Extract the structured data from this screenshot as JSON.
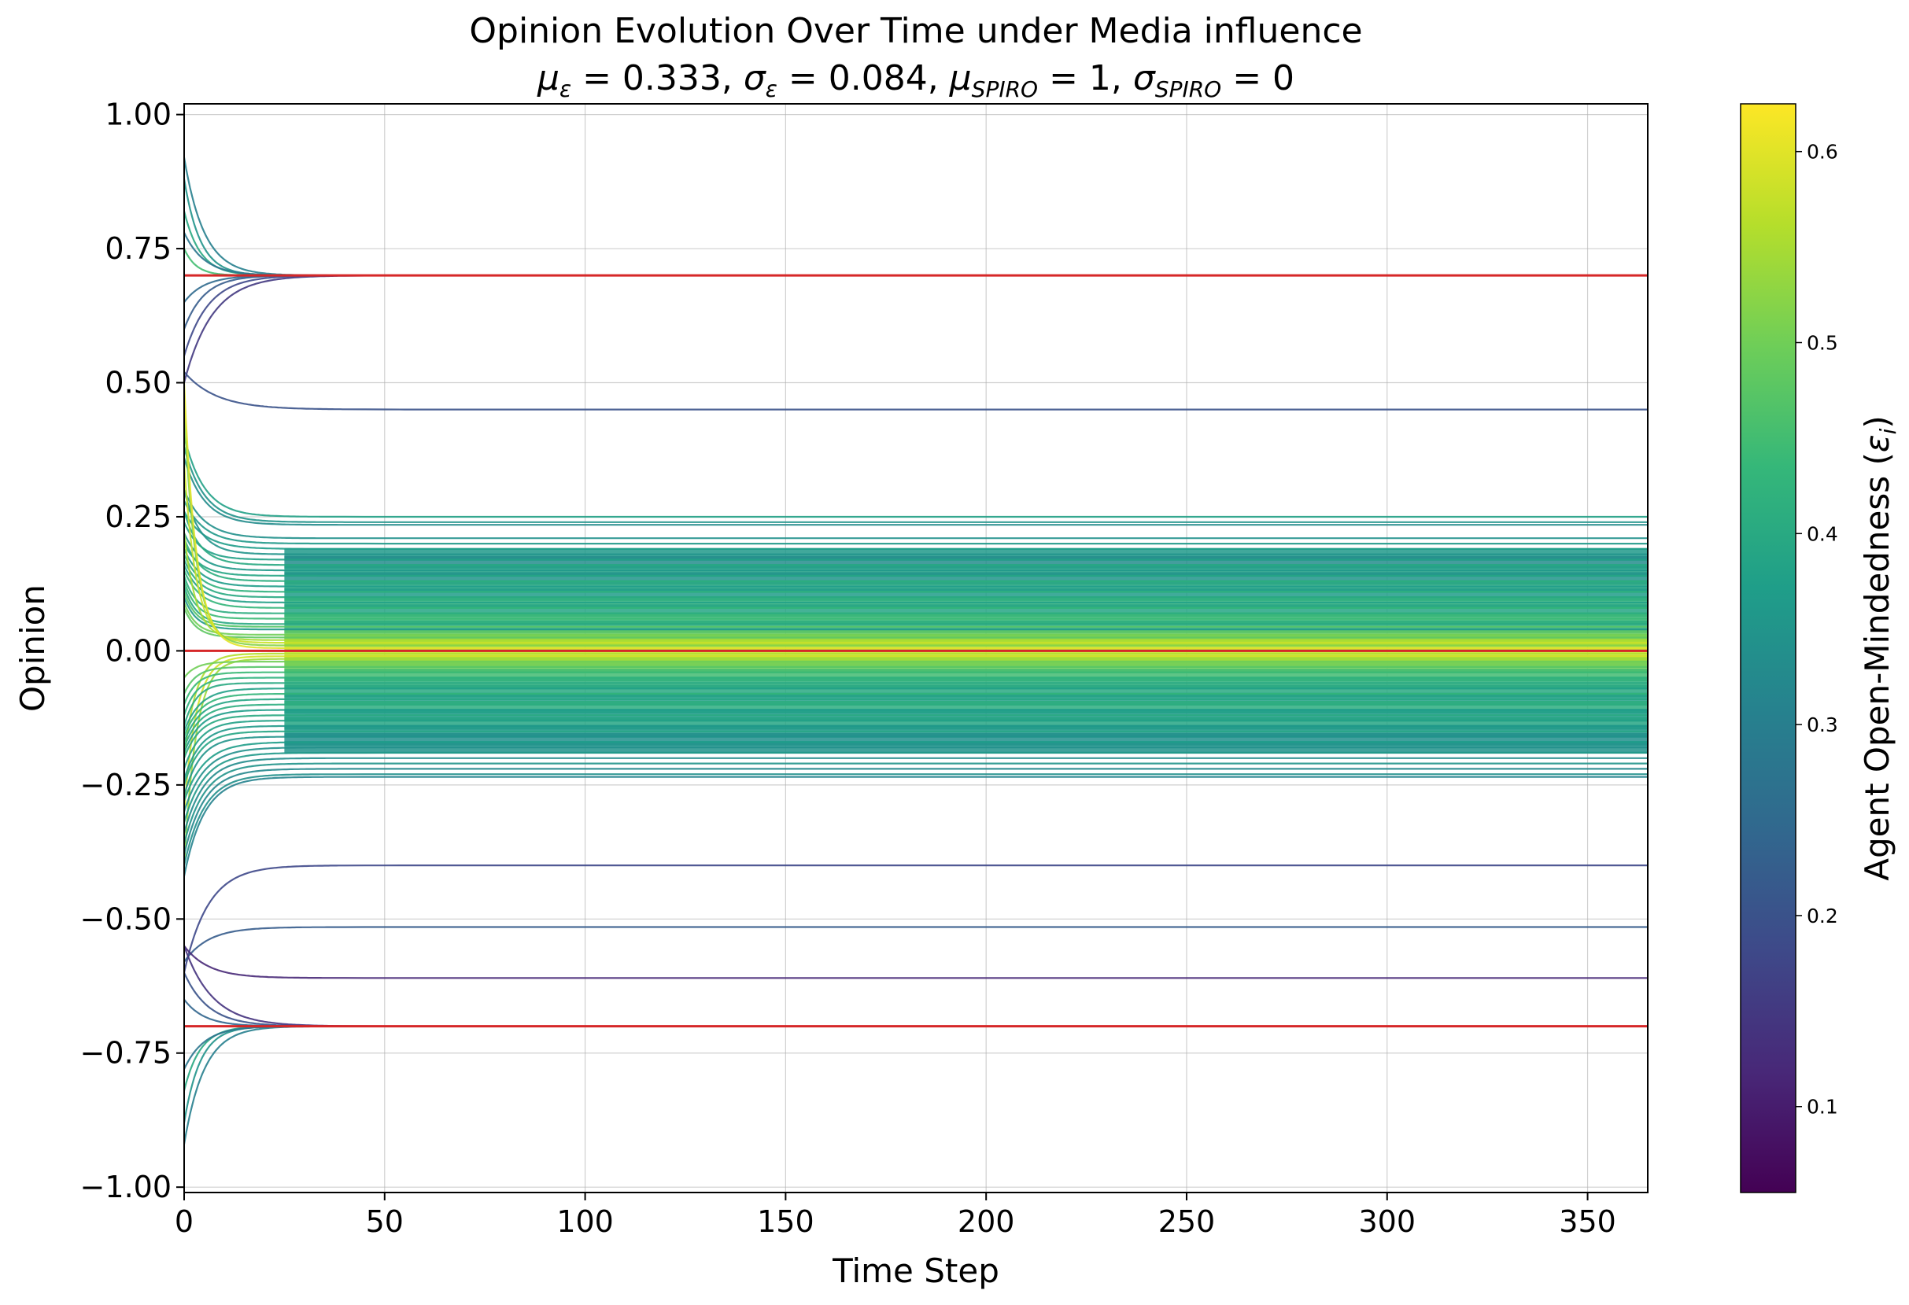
{
  "chart_data": {
    "type": "line",
    "title": "Opinion Evolution Over Time under Media influence",
    "subtitle": {
      "mu_eps_sym": "μ",
      "mu_eps_sub": "ε",
      "mu_eps_val": " = 0.333, ",
      "sigma_eps_sym": "σ",
      "sigma_eps_sub": "ε",
      "sigma_eps_val": " = 0.084, ",
      "mu_spiro_sym": "μ",
      "mu_spiro_sub": "SPIRO",
      "mu_spiro_val": " = 1, ",
      "sigma_spiro_sym": "σ",
      "sigma_spiro_sub": "SPIRO",
      "sigma_spiro_val": " = 0"
    },
    "xlabel": "Time Step",
    "ylabel": "Opinion",
    "xlim": [
      0,
      365
    ],
    "ylim": [
      -1.01,
      1.02
    ],
    "grid": true,
    "x_ticks": [
      0,
      50,
      100,
      150,
      200,
      250,
      300,
      350
    ],
    "x_tick_labels": [
      "0",
      "50",
      "100",
      "150",
      "200",
      "250",
      "300",
      "350"
    ],
    "y_ticks": [
      1.0,
      0.75,
      0.5,
      0.25,
      0.0,
      -0.25,
      -0.5,
      -0.75,
      -1.0
    ],
    "y_tick_labels": [
      "1.00",
      "0.75",
      "0.50",
      "0.25",
      "0.00",
      "−0.25",
      "−0.50",
      "−0.75",
      "−1.00"
    ],
    "media_levels": [
      0.7,
      0.0,
      -0.7
    ],
    "media_color": "#d62728",
    "colorbar": {
      "label_text": "Agent Open-Mindedness (",
      "label_sym": "ε",
      "label_sub": "i",
      "label_close": ")",
      "colormap": "viridis",
      "vmin": 0.055,
      "vmax": 0.625,
      "ticks": [
        0.1,
        0.2,
        0.3,
        0.4,
        0.5,
        0.6
      ],
      "tick_labels": [
        "0.1",
        "0.2",
        "0.3",
        "0.4",
        "0.5",
        "0.6"
      ],
      "stops": [
        "#440154",
        "#482878",
        "#3e4989",
        "#31688e",
        "#26828e",
        "#1f9e89",
        "#35b779",
        "#6ece58",
        "#b5de2b",
        "#fde725"
      ]
    },
    "series": [
      {
        "start": 0.92,
        "final": 0.7,
        "eps": 0.3,
        "tau": 5
      },
      {
        "start": 0.88,
        "final": 0.7,
        "eps": 0.35,
        "tau": 4
      },
      {
        "start": 0.82,
        "final": 0.7,
        "eps": 0.4,
        "tau": 4
      },
      {
        "start": 0.78,
        "final": 0.7,
        "eps": 0.28,
        "tau": 5
      },
      {
        "start": 0.75,
        "final": 0.7,
        "eps": 0.45,
        "tau": 3
      },
      {
        "start": 0.55,
        "final": 0.7,
        "eps": 0.18,
        "tau": 6
      },
      {
        "start": 0.6,
        "final": 0.7,
        "eps": 0.22,
        "tau": 5
      },
      {
        "start": 0.5,
        "final": 0.7,
        "eps": 0.15,
        "tau": 7
      },
      {
        "start": 0.65,
        "final": 0.7,
        "eps": 0.25,
        "tau": 5
      },
      {
        "start": 0.52,
        "final": 0.45,
        "eps": 0.2,
        "tau": 8
      },
      {
        "start": 0.4,
        "final": 0.25,
        "eps": 0.38,
        "tau": 5
      },
      {
        "start": 0.38,
        "final": 0.24,
        "eps": 0.35,
        "tau": 5
      },
      {
        "start": 0.36,
        "final": 0.235,
        "eps": 0.33,
        "tau": 5
      },
      {
        "start": 0.3,
        "final": 0.21,
        "eps": 0.34,
        "tau": 5
      },
      {
        "start": 0.28,
        "final": 0.2,
        "eps": 0.36,
        "tau": 5
      },
      {
        "start": 0.26,
        "final": 0.19,
        "eps": 0.37,
        "tau": 5
      },
      {
        "start": 0.3,
        "final": 0.18,
        "eps": 0.35,
        "tau": 4
      },
      {
        "start": 0.24,
        "final": 0.17,
        "eps": 0.38,
        "tau": 4
      },
      {
        "start": 0.26,
        "final": 0.16,
        "eps": 0.4,
        "tau": 4
      },
      {
        "start": 0.22,
        "final": 0.15,
        "eps": 0.36,
        "tau": 4
      },
      {
        "start": 0.2,
        "final": 0.14,
        "eps": 0.39,
        "tau": 4
      },
      {
        "start": 0.21,
        "final": 0.13,
        "eps": 0.41,
        "tau": 4
      },
      {
        "start": 0.19,
        "final": 0.12,
        "eps": 0.37,
        "tau": 4
      },
      {
        "start": 0.18,
        "final": 0.11,
        "eps": 0.42,
        "tau": 4
      },
      {
        "start": 0.17,
        "final": 0.1,
        "eps": 0.4,
        "tau": 4
      },
      {
        "start": 0.16,
        "final": 0.09,
        "eps": 0.38,
        "tau": 4
      },
      {
        "start": 0.15,
        "final": 0.08,
        "eps": 0.43,
        "tau": 4
      },
      {
        "start": 0.14,
        "final": 0.07,
        "eps": 0.41,
        "tau": 3
      },
      {
        "start": 0.13,
        "final": 0.06,
        "eps": 0.44,
        "tau": 3
      },
      {
        "start": 0.12,
        "final": 0.05,
        "eps": 0.4,
        "tau": 3
      },
      {
        "start": 0.11,
        "final": 0.045,
        "eps": 0.47,
        "tau": 3
      },
      {
        "start": 0.1,
        "final": 0.04,
        "eps": 0.36,
        "tau": 3
      },
      {
        "start": 0.09,
        "final": 0.03,
        "eps": 0.5,
        "tau": 3
      },
      {
        "start": 0.08,
        "final": 0.025,
        "eps": 0.48,
        "tau": 3
      },
      {
        "start": 0.22,
        "final": 0.02,
        "eps": 0.55,
        "tau": 3
      },
      {
        "start": 0.35,
        "final": 0.015,
        "eps": 0.58,
        "tau": 3
      },
      {
        "start": 0.45,
        "final": 0.01,
        "eps": 0.52,
        "tau": 3
      },
      {
        "start": 0.5,
        "final": 0.005,
        "eps": 0.6,
        "tau": 3
      },
      {
        "start": -0.2,
        "final": -0.005,
        "eps": 0.56,
        "tau": 3
      },
      {
        "start": -0.3,
        "final": -0.01,
        "eps": 0.59,
        "tau": 3
      },
      {
        "start": -0.4,
        "final": -0.015,
        "eps": 0.54,
        "tau": 3
      },
      {
        "start": -0.05,
        "final": -0.02,
        "eps": 0.5,
        "tau": 3
      },
      {
        "start": -0.08,
        "final": -0.03,
        "eps": 0.47,
        "tau": 3
      },
      {
        "start": -0.1,
        "final": -0.04,
        "eps": 0.44,
        "tau": 3
      },
      {
        "start": -0.12,
        "final": -0.05,
        "eps": 0.42,
        "tau": 3
      },
      {
        "start": -0.14,
        "final": -0.06,
        "eps": 0.4,
        "tau": 3
      },
      {
        "start": -0.15,
        "final": -0.07,
        "eps": 0.38,
        "tau": 4
      },
      {
        "start": -0.16,
        "final": -0.08,
        "eps": 0.43,
        "tau": 4
      },
      {
        "start": -0.17,
        "final": -0.09,
        "eps": 0.39,
        "tau": 4
      },
      {
        "start": -0.18,
        "final": -0.1,
        "eps": 0.41,
        "tau": 4
      },
      {
        "start": -0.19,
        "final": -0.11,
        "eps": 0.37,
        "tau": 4
      },
      {
        "start": -0.2,
        "final": -0.12,
        "eps": 0.4,
        "tau": 4
      },
      {
        "start": -0.22,
        "final": -0.13,
        "eps": 0.38,
        "tau": 4
      },
      {
        "start": -0.24,
        "final": -0.14,
        "eps": 0.36,
        "tau": 4
      },
      {
        "start": -0.25,
        "final": -0.15,
        "eps": 0.39,
        "tau": 4
      },
      {
        "start": -0.27,
        "final": -0.16,
        "eps": 0.35,
        "tau": 4
      },
      {
        "start": -0.28,
        "final": -0.17,
        "eps": 0.37,
        "tau": 5
      },
      {
        "start": -0.3,
        "final": -0.18,
        "eps": 0.34,
        "tau": 5
      },
      {
        "start": -0.32,
        "final": -0.19,
        "eps": 0.36,
        "tau": 5
      },
      {
        "start": -0.34,
        "final": -0.2,
        "eps": 0.33,
        "tau": 5
      },
      {
        "start": -0.36,
        "final": -0.21,
        "eps": 0.35,
        "tau": 5
      },
      {
        "start": -0.38,
        "final": -0.22,
        "eps": 0.32,
        "tau": 5
      },
      {
        "start": -0.4,
        "final": -0.23,
        "eps": 0.34,
        "tau": 5
      },
      {
        "start": -0.42,
        "final": -0.235,
        "eps": 0.31,
        "tau": 5
      },
      {
        "start": -0.6,
        "final": -0.4,
        "eps": 0.18,
        "tau": 6
      },
      {
        "start": -0.58,
        "final": -0.515,
        "eps": 0.22,
        "tau": 6
      },
      {
        "start": -0.55,
        "final": -0.61,
        "eps": 0.12,
        "tau": 6
      },
      {
        "start": -0.92,
        "final": -0.7,
        "eps": 0.3,
        "tau": 5
      },
      {
        "start": -0.88,
        "final": -0.7,
        "eps": 0.35,
        "tau": 4
      },
      {
        "start": -0.82,
        "final": -0.7,
        "eps": 0.4,
        "tau": 4
      },
      {
        "start": -0.78,
        "final": -0.7,
        "eps": 0.28,
        "tau": 5
      },
      {
        "start": -0.6,
        "final": -0.7,
        "eps": 0.2,
        "tau": 6
      },
      {
        "start": -0.55,
        "final": -0.7,
        "eps": 0.14,
        "tau": 7
      },
      {
        "start": -0.65,
        "final": -0.7,
        "eps": 0.24,
        "tau": 5
      }
    ]
  }
}
